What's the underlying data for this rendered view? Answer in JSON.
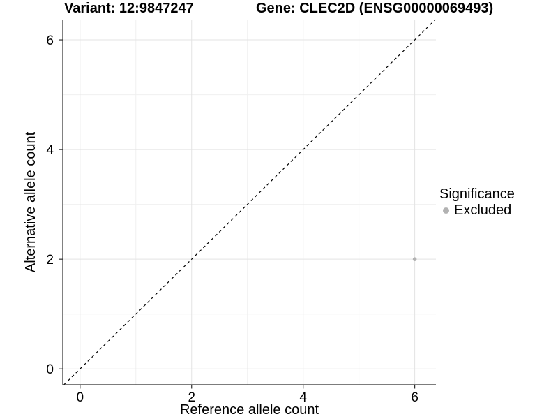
{
  "chart_data": {
    "type": "scatter",
    "title_left": "Variant: 12:9847247",
    "title_right": "Gene: CLEC2D (ENSG00000069493)",
    "xlabel": "Reference allele count",
    "ylabel": "Alternative allele count",
    "xlim": [
      -0.31,
      6.38
    ],
    "ylim": [
      -0.29,
      6.37
    ],
    "x_ticks": [
      0,
      2,
      4,
      6
    ],
    "y_ticks": [
      0,
      2,
      4,
      6
    ],
    "x_minor_ticks": [
      1,
      3,
      5
    ],
    "y_minor_ticks": [
      1,
      3,
      5
    ],
    "grid": "major+minor",
    "reference_line": {
      "type": "identity y=x",
      "style": "dashed",
      "color": "#000000"
    },
    "series": [
      {
        "name": "Excluded",
        "color": "#b2b2b2",
        "points": [
          {
            "x": 6,
            "y": 2
          }
        ]
      }
    ],
    "legend": {
      "title": "Significance",
      "position": "right-middle",
      "items": [
        {
          "label": "Excluded",
          "color": "#b2b2b2",
          "marker": "circle"
        }
      ]
    }
  },
  "colors": {
    "background": "#ffffff",
    "grid_major": "#e3e3e3",
    "grid_minor": "#f0f0f0",
    "axis_line": "#2e2e2e",
    "text": "#000000"
  }
}
